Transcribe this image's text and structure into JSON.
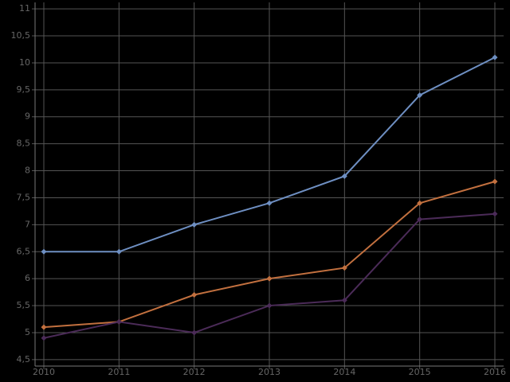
{
  "chart_data": {
    "type": "line",
    "x": [
      2010,
      2011,
      2012,
      2013,
      2014,
      2015,
      2016
    ],
    "xlim": [
      2010,
      2016
    ],
    "xticks": [
      2010,
      2011,
      2012,
      2013,
      2014,
      2015,
      2016
    ],
    "ylim": [
      4.38,
      11.12
    ],
    "yticks": [
      {
        "value": 4.5,
        "label": "4,5"
      },
      5,
      {
        "value": 5.5,
        "label": "5,5"
      },
      6,
      {
        "value": 6.5,
        "label": "6,5"
      },
      7,
      {
        "value": 7.5,
        "label": "7,5"
      },
      8,
      {
        "value": 8.5,
        "label": "8,5"
      },
      9,
      {
        "value": 9.5,
        "label": "9,5"
      },
      10,
      {
        "value": 10.5,
        "label": "10,5"
      },
      11
    ],
    "grid": true,
    "series": [
      {
        "color": "#6e8fc2",
        "values": [
          6.5,
          6.5,
          7.0,
          7.4,
          7.9,
          9.4,
          10.1
        ]
      },
      {
        "color": "#c2703f",
        "values": [
          5.1,
          5.2,
          5.7,
          6.0,
          6.2,
          7.4,
          7.8
        ]
      },
      {
        "color": "#4b2b58",
        "values": [
          4.9,
          5.2,
          5.0,
          5.5,
          5.6,
          7.1,
          7.2
        ]
      }
    ]
  }
}
